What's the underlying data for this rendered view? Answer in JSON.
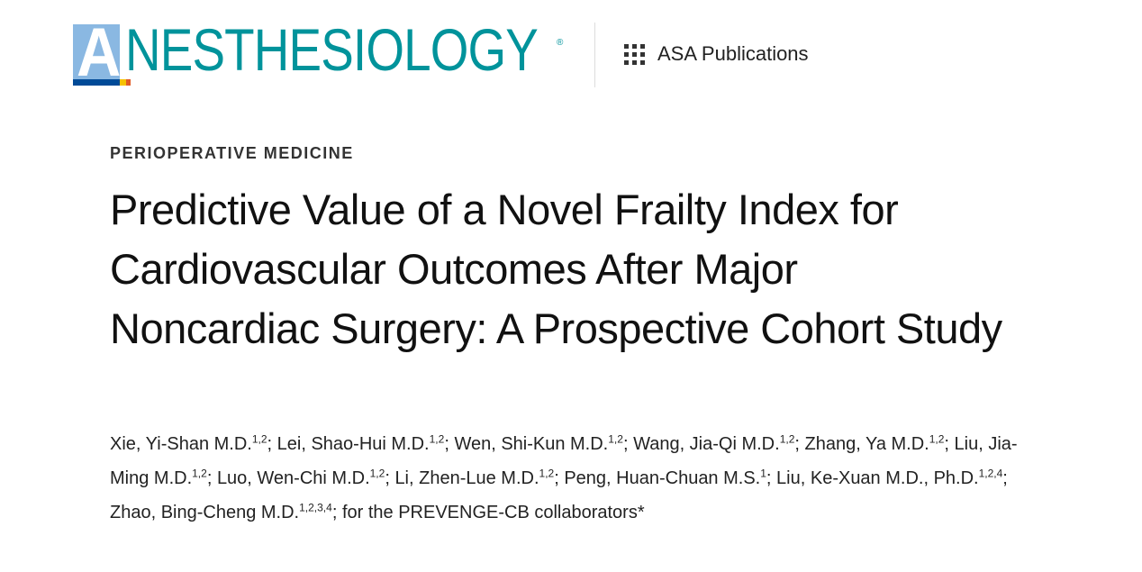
{
  "header": {
    "logo_text": "ANESTHESIOLOGY",
    "logo_registered": "®",
    "publications_label": "ASA Publications"
  },
  "article": {
    "category": "PERIOPERATIVE MEDICINE",
    "title": "Predictive Value of a Novel Frailty Index for Cardiovascular Outcomes After Major Noncardiac Surgery: A Prospective Cohort Study",
    "authors": [
      {
        "name": "Xie, Yi-Shan M.D.",
        "sup": "1,2"
      },
      {
        "name": "Lei, Shao-Hui M.D.",
        "sup": "1,2"
      },
      {
        "name": "Wen, Shi-Kun M.D.",
        "sup": "1,2"
      },
      {
        "name": "Wang, Jia-Qi M.D.",
        "sup": "1,2"
      },
      {
        "name": "Zhang, Ya M.D.",
        "sup": "1,2"
      },
      {
        "name": "Liu, Jia-Ming M.D.",
        "sup": "1,2"
      },
      {
        "name": "Luo, Wen-Chi M.D.",
        "sup": "1,2"
      },
      {
        "name": "Li, Zhen-Lue M.D.",
        "sup": "1,2"
      },
      {
        "name": "Peng, Huan-Chuan M.S.",
        "sup": "1"
      },
      {
        "name": "Liu, Ke-Xuan M.D., Ph.D.",
        "sup": "1,2,4"
      },
      {
        "name": "Zhao, Bing-Cheng M.D.",
        "sup": "1,2,3,4"
      }
    ],
    "collaborators": " for the PREVENGE-CB collaborators*"
  }
}
